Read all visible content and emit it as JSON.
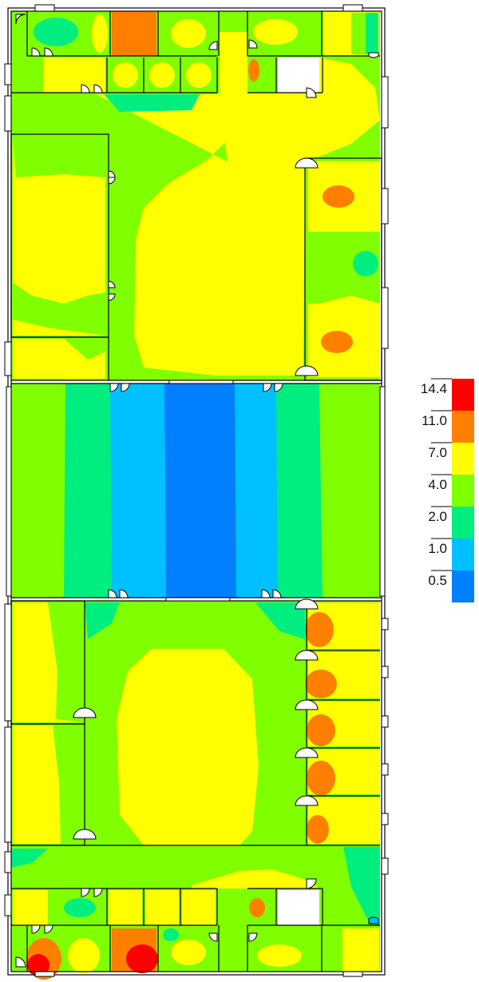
{
  "colors": {
    "red": "#ff0000",
    "orange": "#ff8000",
    "yellow": "#ffff00",
    "green": "#80ff00",
    "teal": "#00ee80",
    "lightblue": "#00c0ff",
    "blue": "#0080ff",
    "wall": "#000000"
  },
  "legend": {
    "labels": [
      "14.4",
      "11.0",
      "7.0",
      "4.0",
      "2.0",
      "1.0",
      "0.5"
    ],
    "colors": [
      "#ff0000",
      "#ff8000",
      "#ffff00",
      "#80ff00",
      "#00ee80",
      "#00c0ff",
      "#0080ff"
    ]
  }
}
